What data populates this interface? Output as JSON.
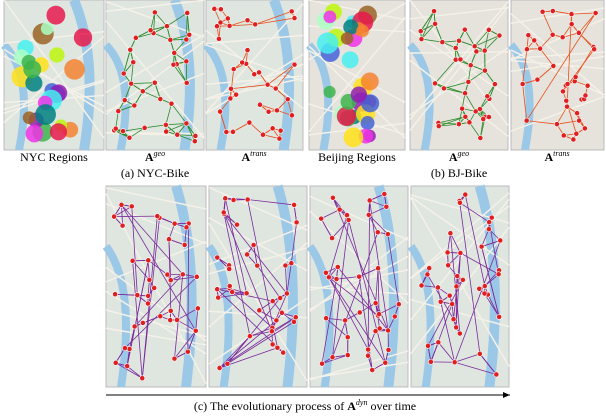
{
  "panels_top": [
    {
      "label": "NYC Regions"
    },
    {
      "label_base": "A",
      "label_sup": "geo"
    },
    {
      "label_base": "A",
      "label_sup": "trans"
    },
    {
      "label": "Beijing Regions"
    },
    {
      "label_base": "A",
      "label_sup": "geo"
    },
    {
      "label_base": "A",
      "label_sup": "trans"
    }
  ],
  "caption_a": "(a) NYC-Bike",
  "caption_b": "(b) BJ-Bike",
  "caption_c": {
    "prefix": "(c) The evolutionary process of ",
    "base": "A",
    "sup": "dyn",
    "suffix": " over time"
  }
}
